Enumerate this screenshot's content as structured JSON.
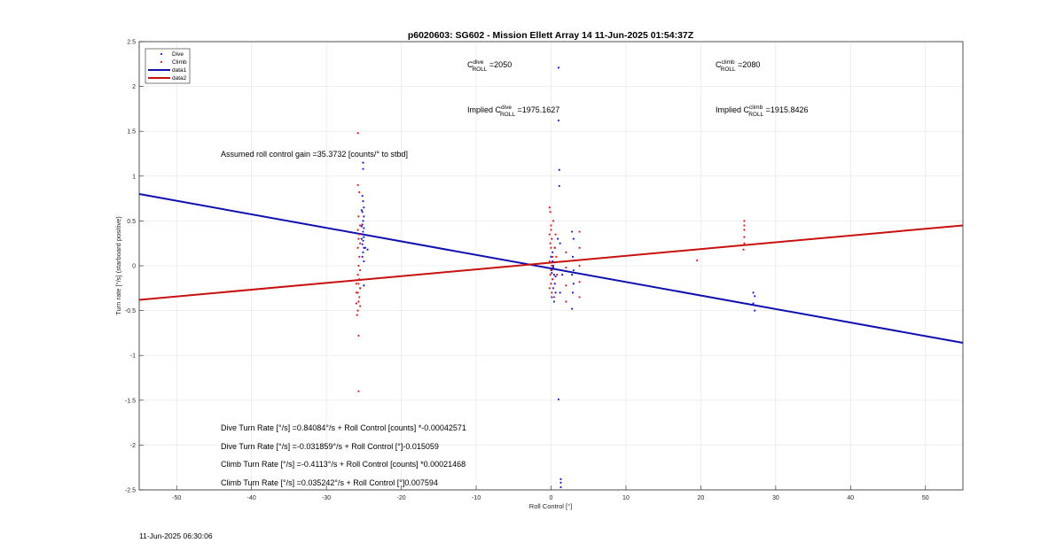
{
  "chart_data": {
    "type": "scatter",
    "title": "p6020603: SG602 - Mission Ellett Array 14 11-Jun-2025 01:54:37Z",
    "xlabel": "Roll Control [°]",
    "ylabel": "Turn rate [°/s] (starboard positive)",
    "xlim": [
      -55,
      55
    ],
    "ylim": [
      -2.5,
      2.5
    ],
    "xticks": [
      -50,
      -40,
      -30,
      -20,
      -10,
      0,
      10,
      20,
      30,
      40,
      50
    ],
    "yticks": [
      2.5,
      2,
      1.5,
      1,
      0.5,
      0,
      -0.5,
      -1,
      -1.5,
      -2,
      -2.5
    ],
    "grid": true,
    "legend": {
      "placement": "top-left",
      "entries": [
        {
          "label": "Dive",
          "kind": "marker",
          "color": "#1f1fd0"
        },
        {
          "label": "Climb",
          "kind": "marker",
          "color": "#d41f1f"
        },
        {
          "label": "data1",
          "kind": "line",
          "color": "#1010b0"
        },
        {
          "label": "data2",
          "kind": "line",
          "color": "#c81010"
        }
      ]
    },
    "series": [
      {
        "name": "Dive",
        "color": "#1f1fd0",
        "points": [
          [
            -25.2,
            0.78
          ],
          [
            -25.1,
            0.72
          ],
          [
            -25.0,
            0.65
          ],
          [
            -25.2,
            0.6
          ],
          [
            -25.0,
            0.55
          ],
          [
            -25.1,
            0.5
          ],
          [
            -25.2,
            0.46
          ],
          [
            -25.0,
            0.42
          ],
          [
            -25.1,
            0.38
          ],
          [
            -25.2,
            0.35
          ],
          [
            -25.0,
            0.32
          ],
          [
            -25.1,
            0.28
          ],
          [
            -25.2,
            0.24
          ],
          [
            -25.0,
            0.2
          ],
          [
            -25.1,
            0.15
          ],
          [
            -25.2,
            0.1
          ],
          [
            -25.0,
            0.05
          ],
          [
            -25.3,
            0.62
          ],
          [
            -25.3,
            0.44
          ],
          [
            -25.3,
            0.3
          ],
          [
            -25.1,
            1.15
          ],
          [
            -25.1,
            1.08
          ],
          [
            -24.8,
            0.2
          ],
          [
            -24.5,
            0.18
          ],
          [
            -25.5,
            -0.25
          ],
          [
            -25.0,
            -0.22
          ],
          [
            0.2,
            0.05
          ],
          [
            0.3,
            0.0
          ],
          [
            0.1,
            -0.05
          ],
          [
            0.4,
            -0.1
          ],
          [
            0.2,
            -0.15
          ],
          [
            0.5,
            -0.2
          ],
          [
            0.3,
            -0.25
          ],
          [
            0.6,
            -0.3
          ],
          [
            0.1,
            -0.35
          ],
          [
            0.4,
            -0.4
          ],
          [
            0.0,
            0.1
          ],
          [
            0.2,
            0.15
          ],
          [
            0.5,
            0.2
          ],
          [
            0.3,
            -0.02
          ],
          [
            0.1,
            -0.08
          ],
          [
            0.6,
            -0.12
          ],
          [
            1.0,
            1.62
          ],
          [
            1.1,
            1.07
          ],
          [
            1.1,
            0.89
          ],
          [
            1.0,
            2.21
          ],
          [
            0.9,
            0.3
          ],
          [
            1.2,
            0.25
          ],
          [
            1.5,
            -0.1
          ],
          [
            1.2,
            -0.3
          ],
          [
            2.8,
            0.38
          ],
          [
            3.0,
            0.3
          ],
          [
            2.9,
            0.1
          ],
          [
            2.8,
            -0.1
          ],
          [
            3.0,
            -0.2
          ],
          [
            2.9,
            -0.3
          ],
          [
            2.8,
            -0.48
          ],
          [
            3.0,
            -0.05
          ],
          [
            1.0,
            -1.49
          ],
          [
            1.3,
            -2.38
          ],
          [
            1.3,
            -2.42
          ],
          [
            1.3,
            -2.47
          ],
          [
            27.0,
            -0.3
          ],
          [
            27.2,
            -0.34
          ],
          [
            27.0,
            -0.42
          ],
          [
            27.2,
            -0.5
          ]
        ]
      },
      {
        "name": "Climb",
        "color": "#d41f1f",
        "points": [
          [
            -25.8,
            1.48
          ],
          [
            -25.8,
            0.9
          ],
          [
            -25.6,
            0.82
          ],
          [
            -25.7,
            0.55
          ],
          [
            -25.5,
            0.45
          ],
          [
            -25.8,
            0.4
          ],
          [
            -25.6,
            0.35
          ],
          [
            -25.7,
            0.3
          ],
          [
            -25.5,
            0.25
          ],
          [
            -25.8,
            0.2
          ],
          [
            -25.6,
            0.1
          ],
          [
            -25.7,
            0.0
          ],
          [
            -25.5,
            -0.05
          ],
          [
            -25.8,
            -0.1
          ],
          [
            -25.6,
            -0.15
          ],
          [
            -25.7,
            -0.2
          ],
          [
            -25.5,
            -0.25
          ],
          [
            -25.8,
            -0.3
          ],
          [
            -25.6,
            -0.35
          ],
          [
            -25.7,
            -0.4
          ],
          [
            -25.5,
            -0.45
          ],
          [
            -25.8,
            -0.5
          ],
          [
            -25.9,
            -0.55
          ],
          [
            -26.0,
            -0.42
          ],
          [
            -26.0,
            -0.3
          ],
          [
            -26.0,
            -0.2
          ],
          [
            -25.7,
            -0.78
          ],
          [
            -25.7,
            -1.4
          ],
          [
            -0.2,
            0.65
          ],
          [
            -0.1,
            0.6
          ],
          [
            0.0,
            0.45
          ],
          [
            -0.2,
            0.35
          ],
          [
            0.1,
            0.3
          ],
          [
            -0.1,
            0.25
          ],
          [
            0.0,
            0.2
          ],
          [
            0.2,
            0.1
          ],
          [
            -0.2,
            0.05
          ],
          [
            0.1,
            0.0
          ],
          [
            0.0,
            -0.05
          ],
          [
            -0.1,
            -0.1
          ],
          [
            0.2,
            -0.15
          ],
          [
            0.0,
            -0.2
          ],
          [
            -0.2,
            -0.25
          ],
          [
            0.1,
            -0.3
          ],
          [
            0.0,
            0.4
          ],
          [
            0.3,
            0.5
          ],
          [
            0.6,
            0.35
          ],
          [
            0.5,
            0.2
          ],
          [
            0.7,
            0.1
          ],
          [
            0.4,
            -0.35
          ],
          [
            0.8,
            -0.1
          ],
          [
            2.0,
            0.15
          ],
          [
            2.0,
            -0.02
          ],
          [
            2.0,
            -0.22
          ],
          [
            2.0,
            -0.4
          ],
          [
            3.8,
            0.38
          ],
          [
            3.8,
            0.2
          ],
          [
            3.8,
            0.0
          ],
          [
            3.8,
            -0.18
          ],
          [
            3.8,
            -0.35
          ],
          [
            19.5,
            0.06
          ],
          [
            25.8,
            0.5
          ],
          [
            25.8,
            0.45
          ],
          [
            25.8,
            0.4
          ],
          [
            25.8,
            0.32
          ],
          [
            25.8,
            0.25
          ],
          [
            25.7,
            0.18
          ]
        ]
      },
      {
        "name": "data1",
        "color": "#1010b0",
        "line": [
          [
            -55,
            0.8
          ],
          [
            55,
            -0.86
          ]
        ]
      },
      {
        "name": "data2",
        "color": "#c81010",
        "line": [
          [
            -55,
            -0.38
          ],
          [
            55,
            0.45
          ]
        ]
      }
    ],
    "annotations": [
      {
        "id": "c_dive",
        "base": "C",
        "sup": "dive",
        "sub": "ROLL",
        "rest": " =2050"
      },
      {
        "id": "c_climb",
        "base": "C",
        "sup": "climb",
        "sub": "ROLL",
        "rest": " =2080"
      },
      {
        "id": "imp_dive",
        "base": "Implied C",
        "sup": "dive",
        "sub": "ROLL",
        "rest": " =1975.1627"
      },
      {
        "id": "imp_climb",
        "base": "Implied C",
        "sup": "climb",
        "sub": "ROLL",
        "rest": " =1915.8426"
      }
    ],
    "gain_text": "Assumed roll control gain =35.3732 [counts/° to stbd]",
    "equations": [
      "Dive Turn Rate [°/s] =0.84084°/s + Roll Control [counts] *-0.00042571",
      "Dive Turn Rate [°/s] =-0.031859°/s + Roll Control [°]-0.015059",
      "Climb Turn Rate [°/s] =-0.4113°/s + Roll Control [counts] *0.00021468",
      "Climb Turn Rate [°/s] =0.035242°/s + Roll Control [°]0.007594"
    ]
  },
  "footer": {
    "timestamp": "11-Jun-2025 06:30:06"
  }
}
